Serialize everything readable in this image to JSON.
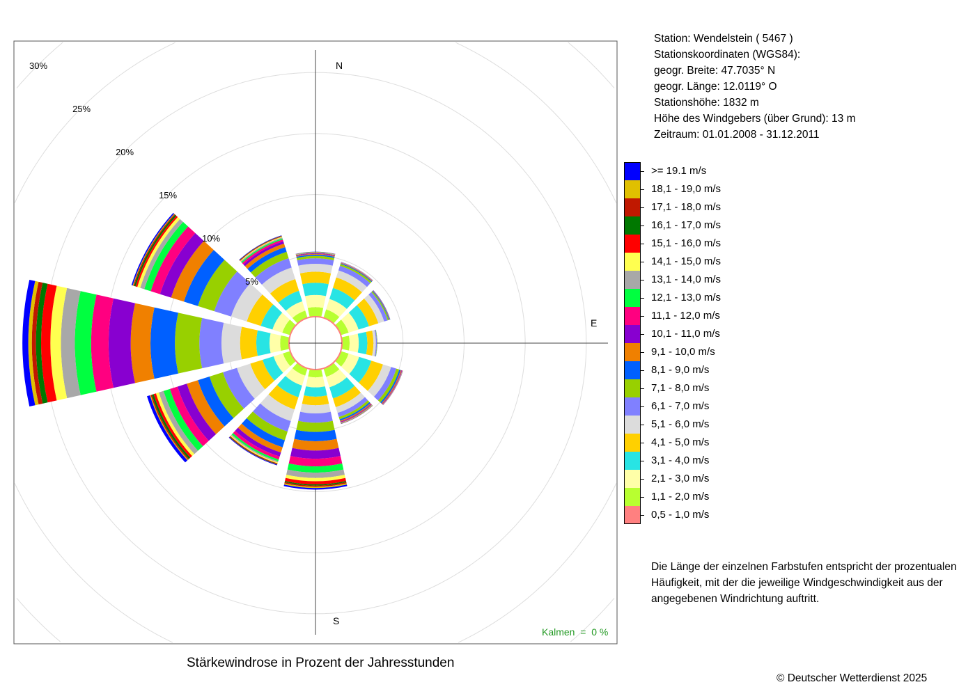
{
  "info": {
    "station": "Station:  Wendelstein  ( 5467 )",
    "coords_label": "Stationskoordinaten (WGS84):",
    "lat": "geogr. Breite: 47.7035° N",
    "lon": "geogr. Länge: 12.0119° O",
    "height": "Stationshöhe: 1832 m",
    "sensor_height": "Höhe des Windgebers (über Grund): 13 m",
    "period": "Zeitraum: 01.01.2008 - 31.12.2011"
  },
  "note": "Die Länge der einzelnen Farbstufen entspricht der prozentualen Häufigkeit, mit der die jeweilige Windgeschwindigkeit aus der angegebenen Windrichtung auftritt.",
  "copyright": "© Deutscher Wetterdienst  2025",
  "chart_data": {
    "type": "wind-rose",
    "title": "Stärkewindrose in Prozent der Jahresstunden",
    "calm_label": "Kalmen  =  0 %",
    "compass_labels": [
      {
        "text": "N",
        "deg": 0
      },
      {
        "text": "E",
        "deg": 90
      },
      {
        "text": "S",
        "deg": 180
      }
    ],
    "ring_ticks": [
      5,
      10,
      15,
      20,
      25,
      30
    ],
    "ring_labels": [
      "5%",
      "10%",
      "15%",
      "20%",
      "25%",
      "30%"
    ],
    "rmax": 30,
    "grid": true,
    "classes": [
      {
        "label": "0,5 - 1,0 m/s",
        "color": "#ff8080"
      },
      {
        "label": "1,1 - 2,0 m/s",
        "color": "#b8ff30"
      },
      {
        "label": "2,1 - 3,0 m/s",
        "color": "#ffffa8"
      },
      {
        "label": "3,1 - 4,0 m/s",
        "color": "#28e4e4"
      },
      {
        "label": "4,1 - 5,0 m/s",
        "color": "#ffd000"
      },
      {
        "label": "5,1 - 6,0 m/s",
        "color": "#dcdcdc"
      },
      {
        "label": "6,1 - 7,0 m/s",
        "color": "#8080ff"
      },
      {
        "label": "7,1 - 8,0 m/s",
        "color": "#98d000"
      },
      {
        "label": "8,1 - 9,0 m/s",
        "color": "#0060ff"
      },
      {
        "label": "9,1 - 10,0 m/s",
        "color": "#f08000"
      },
      {
        "label": "10,1 - 11,0 m/s",
        "color": "#8800d0"
      },
      {
        "label": "11,1 - 12,0 m/s",
        "color": "#ff0080"
      },
      {
        "label": "12,1 - 13,0 m/s",
        "color": "#00ff40"
      },
      {
        "label": "13,1 - 14,0 m/s",
        "color": "#a8a8a8"
      },
      {
        "label": "14,1 - 15,0 m/s",
        "color": "#ffff50"
      },
      {
        "label": "15,1 - 16,0 m/s",
        "color": "#ff0000"
      },
      {
        "label": "16,1 - 17,0 m/s",
        "color": "#007800"
      },
      {
        "label": "17,1 - 18,0 m/s",
        "color": "#c01800"
      },
      {
        "label": "18,1 - 19,0 m/s",
        "color": "#e0c000"
      },
      {
        "label": ">= 19.1 m/s",
        "color": "#0000ff"
      }
    ],
    "directions_deg": [
      0,
      30,
      60,
      90,
      120,
      150,
      180,
      210,
      240,
      270,
      300,
      330
    ],
    "values_percent": [
      [
        0.03,
        0.75,
        1.0,
        1.0,
        0.9,
        0.65,
        0.45,
        0.2,
        0.1,
        0.06,
        0.05,
        0.03,
        0.02,
        0.02,
        0.01,
        0.01,
        0.01,
        0.01,
        0.01,
        0.01
      ],
      [
        0.03,
        0.7,
        0.9,
        0.95,
        0.9,
        0.6,
        0.4,
        0.15,
        0.06,
        0.04,
        0.02,
        0.01,
        0.01,
        0.01,
        0.01,
        0.01,
        0.0,
        0.0,
        0.0,
        0.01
      ],
      [
        0.03,
        0.65,
        0.85,
        0.9,
        0.8,
        0.5,
        0.3,
        0.1,
        0.05,
        0.03,
        0.02,
        0.01,
        0.01,
        0.0,
        0.0,
        0.0,
        0.0,
        0.0,
        0.0,
        0.01
      ],
      [
        0.03,
        0.6,
        0.75,
        0.7,
        0.5,
        0.2,
        0.08,
        0.03,
        0.01,
        0.0,
        0.0,
        0.0,
        0.0,
        0.0,
        0.0,
        0.0,
        0.0,
        0.0,
        0.0,
        0.0
      ],
      [
        0.03,
        0.65,
        0.9,
        1.05,
        1.0,
        0.7,
        0.45,
        0.25,
        0.12,
        0.07,
        0.04,
        0.03,
        0.02,
        0.01,
        0.01,
        0.01,
        0.0,
        0.0,
        0.0,
        0.01
      ],
      [
        0.03,
        0.7,
        0.9,
        0.95,
        0.75,
        0.5,
        0.35,
        0.2,
        0.12,
        0.08,
        0.05,
        0.04,
        0.03,
        0.02,
        0.01,
        0.01,
        0.01,
        0.01,
        0.01,
        0.01
      ],
      [
        0.03,
        0.61,
        0.82,
        0.76,
        0.7,
        0.67,
        0.76,
        0.76,
        0.76,
        0.76,
        0.67,
        0.63,
        0.51,
        0.44,
        0.27,
        0.25,
        0.1,
        0.1,
        0.1,
        0.13
      ],
      [
        0.03,
        0.6,
        0.85,
        1.0,
        1.05,
        1.0,
        0.9,
        0.75,
        0.6,
        0.45,
        0.35,
        0.25,
        0.15,
        0.1,
        0.08,
        0.05,
        0.04,
        0.03,
        0.0,
        0.05
      ],
      [
        0.03,
        0.6,
        0.8,
        0.95,
        1.05,
        1.15,
        1.2,
        1.15,
        1.0,
        0.95,
        0.8,
        0.65,
        0.55,
        0.4,
        0.25,
        0.2,
        0.15,
        0.1,
        0.07,
        0.25
      ],
      [
        0.03,
        0.7,
        0.87,
        1.08,
        1.33,
        1.52,
        1.81,
        2.0,
        2.0,
        1.62,
        1.81,
        1.43,
        1.33,
        1.14,
        0.86,
        0.76,
        0.42,
        0.34,
        0.29,
        0.48
      ],
      [
        0.03,
        0.65,
        0.85,
        1.0,
        1.2,
        1.35,
        1.45,
        1.4,
        1.2,
        1.1,
        0.95,
        0.8,
        0.55,
        0.35,
        0.25,
        0.15,
        0.12,
        0.08,
        0.05,
        0.1
      ],
      [
        0.03,
        0.6,
        0.8,
        0.9,
        1.0,
        1.0,
        0.8,
        0.55,
        0.4,
        0.3,
        0.2,
        0.15,
        0.1,
        0.08,
        0.06,
        0.04,
        0.03,
        0.02,
        0.0,
        0.03
      ]
    ]
  }
}
